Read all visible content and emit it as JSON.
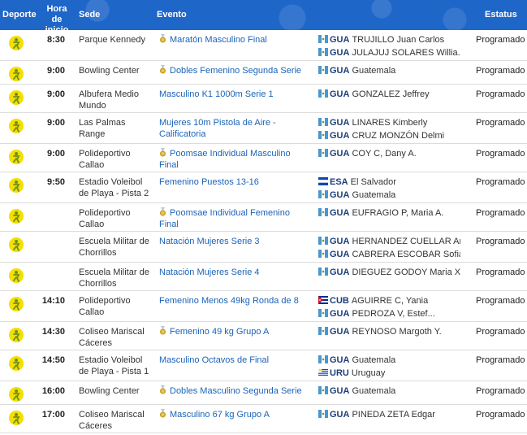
{
  "header": {
    "deporte": "Deporte",
    "hora": "Hora de inicio",
    "sede": "Sede",
    "evento": "Evento",
    "estatus": "Estatus"
  },
  "colors": {
    "header_bg": "#1f66c9",
    "event_link": "#1b63b8",
    "sport_icon": "#f3df00",
    "medal": "#c9a227"
  },
  "rows": [
    {
      "icon": "athletics-icon",
      "time": "8:30",
      "venue": "Parque Kennedy",
      "event": "Maratón Masculino Final",
      "medal": true,
      "teams": [
        {
          "flag": "guatemala-flag",
          "code": "GUA",
          "name": "TRUJILLO Juan Carlos"
        },
        {
          "flag": "guatemala-flag",
          "code": "GUA",
          "name": "JULAJUJ SOLARES Willia..."
        }
      ],
      "status": "Programado"
    },
    {
      "icon": "bowling-icon",
      "time": "9:00",
      "venue": "Bowling Center",
      "event": "Dobles Femenino Segunda Serie",
      "medal": true,
      "teams": [
        {
          "flag": "guatemala-flag",
          "code": "GUA",
          "name": "Guatemala"
        }
      ],
      "status": "Programado"
    },
    {
      "icon": "canoe-icon",
      "time": "9:00",
      "venue": "Albufera Medio Mundo",
      "event": "Masculino K1 1000m Serie 1",
      "medal": false,
      "teams": [
        {
          "flag": "guatemala-flag",
          "code": "GUA",
          "name": "GONZALEZ Jeffrey"
        }
      ],
      "status": "Programado"
    },
    {
      "icon": "shooting-icon",
      "time": "9:00",
      "venue": "Las Palmas Range",
      "event": "Mujeres 10m Pistola de Aire - Calificatoria",
      "medal": false,
      "teams": [
        {
          "flag": "guatemala-flag",
          "code": "GUA",
          "name": "LINARES Kimberly"
        },
        {
          "flag": "guatemala-flag",
          "code": "GUA",
          "name": "CRUZ MONZÓN Delmi"
        }
      ],
      "status": "Programado"
    },
    {
      "icon": "taekwondo-icon",
      "time": "9:00",
      "venue": "Polideportivo Callao",
      "event": "Poomsae Individual Masculino Final",
      "medal": true,
      "teams": [
        {
          "flag": "guatemala-flag",
          "code": "GUA",
          "name": "COY C, Dany A."
        }
      ],
      "status": "Programado"
    },
    {
      "icon": "beach-volleyball-icon",
      "time": "9:50",
      "venue": "Estadio Voleibol de Playa - Pista 2",
      "event": "Femenino Puestos 13-16",
      "medal": false,
      "teams": [
        {
          "flag": "el-salvador-flag",
          "code": "ESA",
          "name": "El Salvador"
        },
        {
          "flag": "guatemala-flag",
          "code": "GUA",
          "name": "Guatemala"
        }
      ],
      "status": "Programado"
    },
    {
      "icon": "taekwondo-icon",
      "time": "",
      "venue": "Polideportivo Callao",
      "event": "Poomsae Individual Femenino Final",
      "medal": true,
      "teams": [
        {
          "flag": "guatemala-flag",
          "code": "GUA",
          "name": "EUFRAGIO P, Maria A."
        }
      ],
      "status": "Programado"
    },
    {
      "icon": "swimming-icon",
      "time": "",
      "venue": "Escuela Militar de Chorrillos",
      "event": "Natación Mujeres Serie 3",
      "medal": false,
      "teams": [
        {
          "flag": "guatemala-flag",
          "code": "GUA",
          "name": "HERNANDEZ CUELLAR An..."
        },
        {
          "flag": "guatemala-flag",
          "code": "GUA",
          "name": "CABRERA ESCOBAR Sofia"
        }
      ],
      "status": "Programado"
    },
    {
      "icon": "swimming-icon",
      "time": "",
      "venue": "Escuela Militar de Chorrillos",
      "event": "Natación Mujeres Serie 4",
      "medal": false,
      "teams": [
        {
          "flag": "guatemala-flag",
          "code": "GUA",
          "name": "DIEGUEZ GODOY Maria Xim..."
        }
      ],
      "status": "Programado"
    },
    {
      "icon": "taekwondo-icon",
      "time": "14:10",
      "venue": "Polideportivo Callao",
      "event": "Femenino Menos 49kg Ronda de 8",
      "medal": false,
      "teams": [
        {
          "flag": "cuba-flag",
          "code": "CUB",
          "name": "AGUIRRE C, Yania"
        },
        {
          "flag": "guatemala-flag",
          "code": "GUA",
          "name": "PEDROZA V, Estef..."
        }
      ],
      "status": "Programado"
    },
    {
      "icon": "weightlifting-icon",
      "time": "14:30",
      "venue": "Coliseo Mariscal Cáceres",
      "event": "Femenino 49 kg Grupo A",
      "medal": true,
      "teams": [
        {
          "flag": "guatemala-flag",
          "code": "GUA",
          "name": "REYNOSO Margoth Y."
        }
      ],
      "status": "Programado"
    },
    {
      "icon": "beach-volleyball-icon",
      "time": "14:50",
      "venue": "Estadio Voleibol de Playa - Pista 1",
      "event": "Masculino Octavos de Final",
      "medal": false,
      "teams": [
        {
          "flag": "guatemala-flag",
          "code": "GUA",
          "name": "Guatemala"
        },
        {
          "flag": "uruguay-flag",
          "code": "URU",
          "name": "Uruguay"
        }
      ],
      "status": "Programado"
    },
    {
      "icon": "bowling-icon",
      "time": "16:00",
      "venue": "Bowling Center",
      "event": "Dobles Masculino Segunda Serie",
      "medal": true,
      "teams": [
        {
          "flag": "guatemala-flag",
          "code": "GUA",
          "name": "Guatemala"
        }
      ],
      "status": "Programado"
    },
    {
      "icon": "weightlifting-icon",
      "time": "17:00",
      "venue": "Coliseo Mariscal Cáceres",
      "event": "Masculino 67 kg Grupo A",
      "medal": true,
      "teams": [
        {
          "flag": "guatemala-flag",
          "code": "GUA",
          "name": "PINEDA ZETA Edgar"
        }
      ],
      "status": "Programado"
    }
  ]
}
